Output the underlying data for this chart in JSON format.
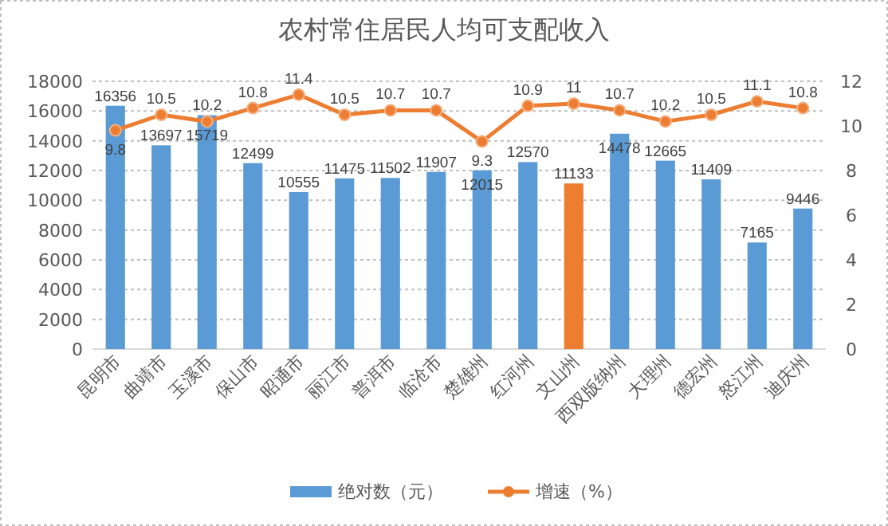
{
  "chart_data": {
    "type": "bar",
    "title": "农村常住居民人均可支配收入",
    "categories": [
      "昆明市",
      "曲靖市",
      "玉溪市",
      "保山市",
      "昭通市",
      "丽江市",
      "普洱市",
      "临沧市",
      "楚雄州",
      "红河州",
      "文山州",
      "西双版纳州",
      "大理州",
      "德宏州",
      "怒江州",
      "迪庆州"
    ],
    "series": [
      {
        "name": "绝对数（元）",
        "color": "#5b9bd5",
        "colors": [
          "#5b9bd5",
          "#5b9bd5",
          "#5b9bd5",
          "#5b9bd5",
          "#5b9bd5",
          "#5b9bd5",
          "#5b9bd5",
          "#5b9bd5",
          "#5b9bd5",
          "#5b9bd5",
          "#ed7d31",
          "#5b9bd5",
          "#5b9bd5",
          "#5b9bd5",
          "#5b9bd5",
          "#5b9bd5"
        ],
        "values": [
          16356,
          13697,
          15719,
          12499,
          10555,
          11475,
          11502,
          11907,
          12015,
          12570,
          11133,
          14478,
          12665,
          11409,
          7165,
          9446
        ]
      },
      {
        "name": "增速（%）",
        "type": "line",
        "axis": "y2",
        "color": "#ed7d31",
        "marker": "circle",
        "values": [
          9.8,
          10.5,
          10.2,
          10.8,
          11.4,
          10.5,
          10.7,
          10.7,
          9.3,
          10.9,
          11,
          10.7,
          10.2,
          10.5,
          11.1,
          10.8
        ]
      }
    ],
    "ylim": [
      0,
      18000
    ],
    "yticks": [
      0,
      2000,
      4000,
      6000,
      8000,
      10000,
      12000,
      14000,
      16000,
      18000
    ],
    "y2lim": [
      0,
      12
    ],
    "y2ticks": [
      0,
      2,
      4,
      6,
      8,
      10,
      12
    ],
    "grid": "y",
    "legend": "bottom",
    "data_labels": true
  }
}
